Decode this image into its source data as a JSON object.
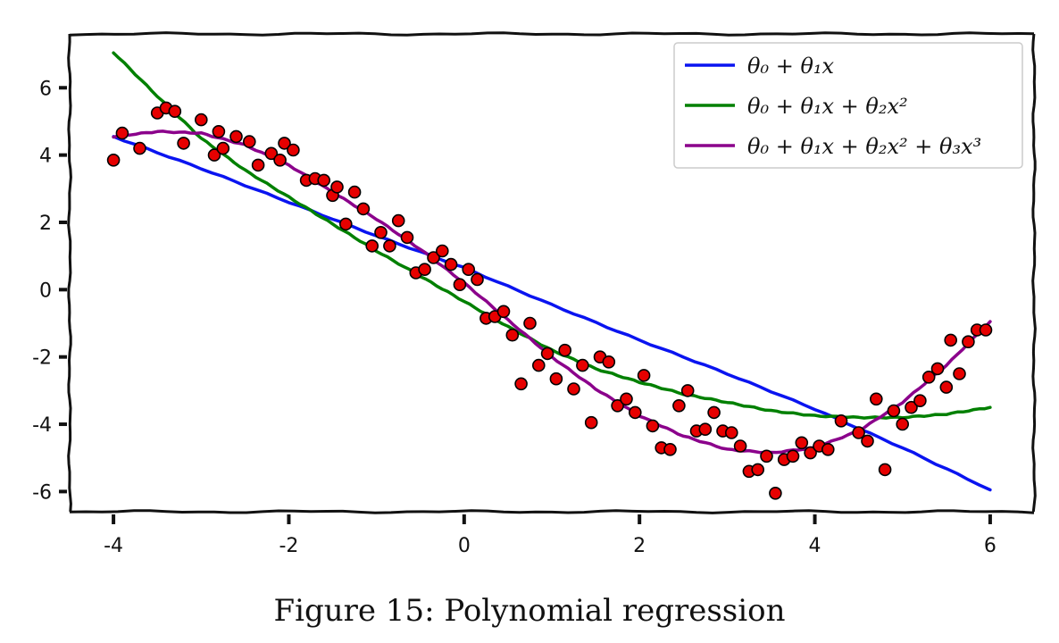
{
  "caption": "Figure 15: Polynomial regression",
  "chart_data": {
    "type": "scatter",
    "xlim": [
      -4.5,
      6.5
    ],
    "ylim": [
      -6.6,
      7.6
    ],
    "xticks": [
      -4,
      -2,
      0,
      2,
      4,
      6
    ],
    "yticks": [
      -6,
      -4,
      -2,
      0,
      2,
      4,
      6
    ],
    "grid": false,
    "legend_position": "top-right",
    "scatter": {
      "color": "#e60000",
      "edge_color": "#000000",
      "points": [
        [
          -4.0,
          3.85
        ],
        [
          -3.9,
          4.65
        ],
        [
          -3.7,
          4.2
        ],
        [
          -3.5,
          5.25
        ],
        [
          -3.4,
          5.4
        ],
        [
          -3.3,
          5.3
        ],
        [
          -3.2,
          4.35
        ],
        [
          -3.0,
          5.05
        ],
        [
          -2.8,
          4.7
        ],
        [
          -2.85,
          4.0
        ],
        [
          -2.75,
          4.2
        ],
        [
          -2.6,
          4.55
        ],
        [
          -2.45,
          4.4
        ],
        [
          -2.35,
          3.7
        ],
        [
          -2.2,
          4.05
        ],
        [
          -2.1,
          3.85
        ],
        [
          -2.05,
          4.35
        ],
        [
          -1.95,
          4.15
        ],
        [
          -1.8,
          3.25
        ],
        [
          -1.7,
          3.3
        ],
        [
          -1.6,
          3.25
        ],
        [
          -1.5,
          2.8
        ],
        [
          -1.45,
          3.05
        ],
        [
          -1.35,
          1.95
        ],
        [
          -1.25,
          2.9
        ],
        [
          -1.15,
          2.4
        ],
        [
          -1.05,
          1.3
        ],
        [
          -0.95,
          1.7
        ],
        [
          -0.85,
          1.3
        ],
        [
          -0.75,
          2.05
        ],
        [
          -0.65,
          1.55
        ],
        [
          -0.55,
          0.5
        ],
        [
          -0.45,
          0.6
        ],
        [
          -0.35,
          0.95
        ],
        [
          -0.25,
          1.15
        ],
        [
          -0.15,
          0.75
        ],
        [
          -0.05,
          0.15
        ],
        [
          0.05,
          0.6
        ],
        [
          0.15,
          0.3
        ],
        [
          0.25,
          -0.85
        ],
        [
          0.35,
          -0.8
        ],
        [
          0.45,
          -0.65
        ],
        [
          0.55,
          -1.35
        ],
        [
          0.65,
          -2.8
        ],
        [
          0.75,
          -1.0
        ],
        [
          0.85,
          -2.25
        ],
        [
          0.95,
          -1.9
        ],
        [
          1.05,
          -2.65
        ],
        [
          1.15,
          -1.8
        ],
        [
          1.25,
          -2.95
        ],
        [
          1.35,
          -2.25
        ],
        [
          1.45,
          -3.95
        ],
        [
          1.55,
          -2.0
        ],
        [
          1.65,
          -2.15
        ],
        [
          1.75,
          -3.45
        ],
        [
          1.85,
          -3.25
        ],
        [
          1.95,
          -3.65
        ],
        [
          2.05,
          -2.55
        ],
        [
          2.15,
          -4.05
        ],
        [
          2.25,
          -4.7
        ],
        [
          2.35,
          -4.75
        ],
        [
          2.45,
          -3.45
        ],
        [
          2.55,
          -3.0
        ],
        [
          2.65,
          -4.2
        ],
        [
          2.75,
          -4.15
        ],
        [
          2.85,
          -3.65
        ],
        [
          2.95,
          -4.2
        ],
        [
          3.05,
          -4.25
        ],
        [
          3.15,
          -4.65
        ],
        [
          3.25,
          -5.4
        ],
        [
          3.35,
          -5.35
        ],
        [
          3.45,
          -4.95
        ],
        [
          3.55,
          -6.05
        ],
        [
          3.65,
          -5.05
        ],
        [
          3.75,
          -4.95
        ],
        [
          3.85,
          -4.55
        ],
        [
          3.95,
          -4.85
        ],
        [
          4.05,
          -4.65
        ],
        [
          4.15,
          -4.75
        ],
        [
          4.3,
          -3.9
        ],
        [
          4.5,
          -4.25
        ],
        [
          4.6,
          -4.5
        ],
        [
          4.7,
          -3.25
        ],
        [
          4.8,
          -5.35
        ],
        [
          4.9,
          -3.6
        ],
        [
          5.0,
          -4.0
        ],
        [
          5.1,
          -3.5
        ],
        [
          5.2,
          -3.3
        ],
        [
          5.3,
          -2.6
        ],
        [
          5.4,
          -2.35
        ],
        [
          5.5,
          -2.9
        ],
        [
          5.55,
          -1.5
        ],
        [
          5.65,
          -2.5
        ],
        [
          5.75,
          -1.55
        ],
        [
          5.85,
          -1.2
        ],
        [
          5.95,
          -1.2
        ]
      ]
    },
    "series": [
      {
        "name": "θ₀ + θ₁x",
        "color": "#0a14f0",
        "x": [
          -4.0,
          -3.0,
          -2.0,
          -1.0,
          0.0,
          1.0,
          2.0,
          3.0,
          4.0,
          5.0,
          6.0
        ],
        "y": [
          4.55,
          3.6,
          2.6,
          1.6,
          0.65,
          -0.45,
          -1.5,
          -2.5,
          -3.55,
          -4.7,
          -5.95
        ]
      },
      {
        "name": "θ₀ + θ₁x + θ₂x²",
        "color": "#008000",
        "x": [
          -4.0,
          -3.5,
          -3.0,
          -2.5,
          -2.0,
          -1.5,
          -1.0,
          -0.5,
          0.0,
          0.5,
          1.0,
          1.5,
          2.0,
          2.5,
          3.0,
          3.5,
          4.0,
          4.5,
          5.0,
          5.5,
          6.0
        ],
        "y": [
          7.05,
          5.75,
          4.5,
          3.55,
          2.75,
          1.95,
          1.15,
          0.4,
          -0.35,
          -1.1,
          -1.8,
          -2.35,
          -2.75,
          -3.1,
          -3.35,
          -3.6,
          -3.75,
          -3.8,
          -3.8,
          -3.7,
          -3.5
        ]
      },
      {
        "name": "θ₀ + θ₁x + θ₂x² + θ₃x³",
        "color": "#8b008b",
        "x": [
          -4.0,
          -3.5,
          -3.0,
          -2.5,
          -2.0,
          -1.5,
          -1.0,
          -0.5,
          0.0,
          0.5,
          1.0,
          1.5,
          2.0,
          2.5,
          3.0,
          3.5,
          4.0,
          4.5,
          5.0,
          5.5,
          6.0
        ],
        "y": [
          4.55,
          4.7,
          4.65,
          4.3,
          3.7,
          2.9,
          2.1,
          1.2,
          0.2,
          -0.9,
          -2.0,
          -2.95,
          -3.75,
          -4.35,
          -4.75,
          -4.85,
          -4.7,
          -4.2,
          -3.35,
          -2.25,
          -0.95
        ]
      }
    ]
  }
}
